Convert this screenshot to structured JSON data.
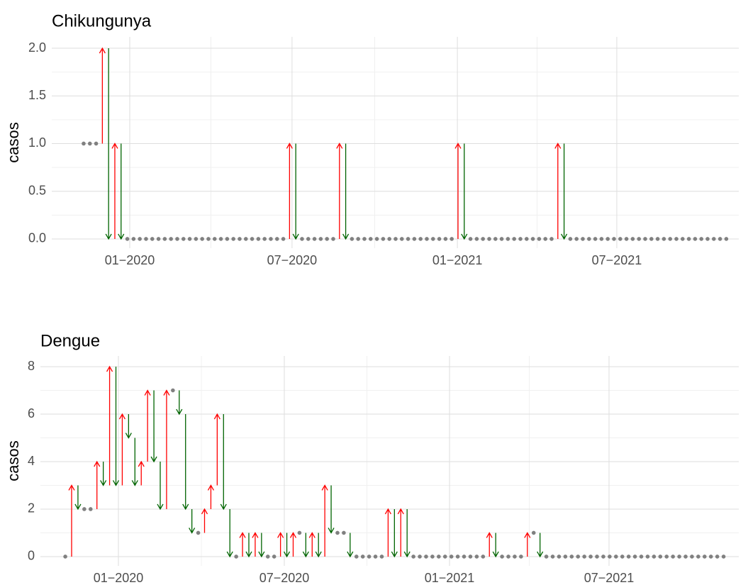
{
  "chart_data": [
    {
      "type": "arrow",
      "title": "Chikungunya",
      "ylabel": "casos",
      "values": [
        1,
        1,
        1,
        2,
        0,
        1,
        0,
        0,
        0,
        0,
        0,
        0,
        0,
        0,
        0,
        0,
        0,
        0,
        0,
        0,
        0,
        0,
        0,
        0,
        0,
        0,
        0,
        0,
        0,
        0,
        0,
        0,
        0,
        1,
        0,
        0,
        0,
        0,
        0,
        0,
        0,
        1,
        0,
        0,
        0,
        0,
        0,
        0,
        0,
        0,
        0,
        0,
        0,
        0,
        0,
        0,
        0,
        0,
        0,
        0,
        1,
        0,
        0,
        0,
        0,
        0,
        0,
        0,
        0,
        0,
        0,
        0,
        0,
        0,
        0,
        0,
        1,
        0,
        0,
        0,
        0,
        0,
        0,
        0,
        0,
        0,
        0,
        0,
        0,
        0,
        0,
        0,
        0,
        0,
        0,
        0,
        0,
        0,
        0,
        0,
        0,
        0,
        0,
        0
      ],
      "colors": {
        "increase": "#ff0000",
        "decrease": "#006400",
        "unchanged": "#808080"
      },
      "xlim": [
        -5.11,
        105.0
      ],
      "xticks": [
        {
          "value": 7.39,
          "label": "01−2020"
        },
        {
          "value": 33.4,
          "label": "07−2020"
        },
        {
          "value": 59.9,
          "label": "01−2021"
        },
        {
          "value": 85.45,
          "label": "07−2021"
        }
      ],
      "ylim": [
        -0.097,
        2.119
      ],
      "yticks": [
        {
          "value": 0,
          "label": "0.0"
        },
        {
          "value": 0.5,
          "label": "0.5"
        },
        {
          "value": 1,
          "label": "1.0"
        },
        {
          "value": 1.5,
          "label": "1.5"
        },
        {
          "value": 2,
          "label": "2.0"
        }
      ],
      "grid": true
    },
    {
      "type": "arrow",
      "title": "Dengue",
      "ylabel": "casos",
      "values": [
        0,
        3,
        2,
        2,
        2,
        4,
        3,
        8,
        3,
        6,
        5,
        3,
        4,
        7,
        4,
        2,
        7,
        7,
        6,
        2,
        1,
        1,
        2,
        3,
        6,
        2,
        0,
        0,
        1,
        0,
        1,
        0,
        0,
        0,
        1,
        0,
        1,
        1,
        0,
        1,
        0,
        3,
        1,
        1,
        1,
        0,
        0,
        0,
        0,
        0,
        0,
        2,
        0,
        2,
        0,
        0,
        0,
        0,
        0,
        0,
        0,
        0,
        0,
        0,
        0,
        0,
        0,
        1,
        0,
        0,
        0,
        0,
        0,
        1,
        1,
        0,
        0,
        0,
        0,
        0,
        0,
        0,
        0,
        0,
        0,
        0,
        0,
        0,
        0,
        0,
        0,
        0,
        0,
        0,
        0,
        0,
        0,
        0,
        0,
        0,
        0,
        0,
        0,
        0,
        0
      ],
      "colors": {
        "increase": "#ff0000",
        "decrease": "#006400",
        "unchanged": "#808080"
      },
      "xlim": [
        -3.93,
        106.4
      ],
      "xticks": [
        {
          "value": 8.39,
          "label": "01−2020"
        },
        {
          "value": 34.6,
          "label": "07−2020"
        },
        {
          "value": 60.7,
          "label": "01−2021"
        },
        {
          "value": 85.9,
          "label": "07−2021"
        }
      ],
      "ylim": [
        -0.39,
        8.45
      ],
      "yticks": [
        0,
        2,
        4,
        6,
        8
      ],
      "grid": true
    }
  ]
}
